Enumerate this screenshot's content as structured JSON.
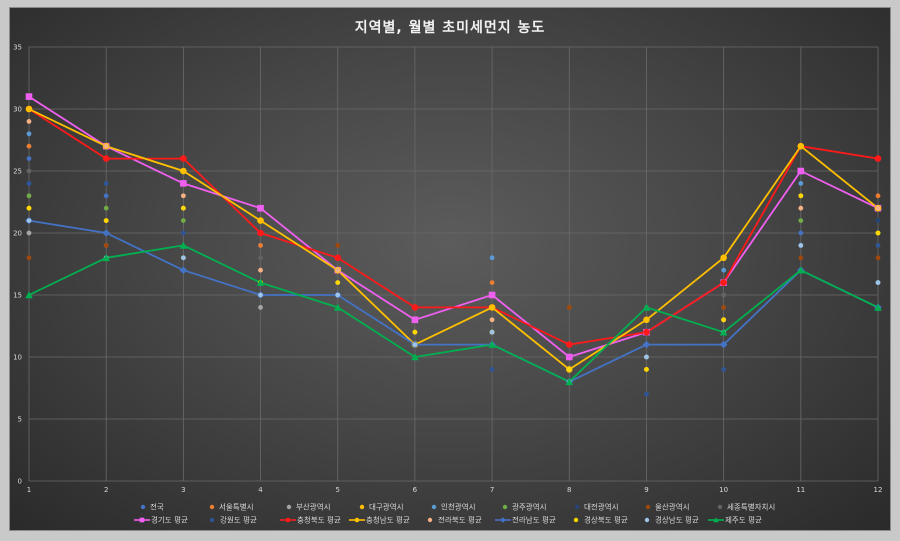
{
  "chart_data": {
    "type": "line",
    "title": "지역별, 월별 초미세먼지 농도",
    "xlabel": "",
    "ylabel": "",
    "ylim": [
      0,
      35
    ],
    "yticks": [
      0,
      5,
      10,
      15,
      20,
      25,
      30,
      35
    ],
    "categories": [
      "1",
      "2",
      "3",
      "4",
      "5",
      "6",
      "7",
      "8",
      "9",
      "10",
      "11",
      "12"
    ],
    "grid": true,
    "legend_position": "bottom",
    "point_series": [
      {
        "name": "전국",
        "color": "#4472c4",
        "values": [
          26,
          23,
          22,
          19,
          16,
          11,
          13,
          8,
          11,
          14,
          20,
          20
        ]
      },
      {
        "name": "서울특별시",
        "color": "#ed7d31",
        "values": [
          27,
          26,
          23,
          19,
          18,
          12,
          16,
          14,
          14,
          14,
          23,
          23
        ]
      },
      {
        "name": "부산광역시",
        "color": "#a5a5a5",
        "values": [
          20,
          19,
          18,
          14,
          15,
          11,
          12,
          8,
          10,
          13,
          19,
          16
        ]
      },
      {
        "name": "대구광역시",
        "color": "#ffc000",
        "values": [
          22,
          21,
          22,
          16,
          16,
          12,
          12,
          9,
          9,
          13,
          23,
          20
        ]
      },
      {
        "name": "인천광역시",
        "color": "#5b9bd5",
        "values": [
          28,
          26,
          24,
          22,
          18,
          13,
          18,
          10,
          14,
          17,
          24,
          16
        ]
      },
      {
        "name": "광주광역시",
        "color": "#70ad47",
        "values": [
          23,
          22,
          21,
          16,
          15,
          11,
          12,
          8,
          12,
          13,
          21,
          20
        ]
      },
      {
        "name": "대전광역시",
        "color": "#264478",
        "values": [
          24,
          24,
          23,
          20,
          18,
          12,
          14,
          9,
          12,
          14,
          25,
          21
        ]
      },
      {
        "name": "울산광역시",
        "color": "#9e480e",
        "values": [
          18,
          19,
          18,
          17,
          19,
          11,
          11,
          14,
          13,
          14,
          18,
          18
        ]
      },
      {
        "name": "세종특별자치시",
        "color": "#636363",
        "values": [
          25,
          24,
          23,
          18,
          17,
          12,
          13,
          10,
          14,
          15,
          23,
          19
        ]
      }
    ],
    "series": [
      {
        "name": "경기도 평균",
        "color": "#f060f0",
        "marker": "square",
        "values": [
          31,
          27,
          24,
          22,
          17,
          13,
          15,
          10,
          12,
          16,
          25,
          22
        ]
      },
      {
        "name": "강원도 평균",
        "color": "#2f5597",
        "marker": "circle",
        "point_only": true,
        "values": [
          24,
          24,
          20,
          17,
          16,
          11,
          9,
          8,
          7,
          9,
          19,
          19
        ]
      },
      {
        "name": "충청북도 평균",
        "color": "#ff1a1a",
        "marker": "circle",
        "values": [
          30,
          26,
          26,
          20,
          18,
          14,
          14,
          11,
          12,
          16,
          27,
          26
        ]
      },
      {
        "name": "충청남도 평균",
        "color": "#ffc000",
        "marker": "circle",
        "values": [
          30,
          27,
          25,
          21,
          17,
          11,
          14,
          9,
          13,
          18,
          27,
          22
        ]
      },
      {
        "name": "전라북도 평균",
        "color": "#f4b183",
        "marker": "circle",
        "point_only": true,
        "values": [
          29,
          27,
          23,
          17,
          17,
          12,
          13,
          9,
          11,
          13,
          22,
          22
        ]
      },
      {
        "name": "전라남도 평균",
        "color": "#4472c4",
        "marker": "diamond",
        "values": [
          21,
          20,
          17,
          15,
          15,
          11,
          11,
          8,
          11,
          11,
          17,
          14
        ]
      },
      {
        "name": "경상북도 평균",
        "color": "#ffd700",
        "marker": "circle",
        "point_only": true,
        "values": [
          22,
          21,
          22,
          16,
          16,
          12,
          12,
          9,
          9,
          13,
          23,
          20
        ]
      },
      {
        "name": "경상남도 평균",
        "color": "#9dc3e6",
        "marker": "circle",
        "point_only": true,
        "values": [
          21,
          18,
          18,
          15,
          15,
          11,
          12,
          8,
          10,
          12,
          19,
          16
        ]
      },
      {
        "name": "제주도 평균",
        "color": "#00b050",
        "marker": "triangle",
        "values": [
          15,
          18,
          19,
          16,
          14,
          10,
          11,
          8,
          14,
          12,
          17,
          14
        ]
      }
    ]
  },
  "colors": {
    "background": "#474747",
    "gridline": "#6a6a6a",
    "text": "#d9d9d9"
  }
}
